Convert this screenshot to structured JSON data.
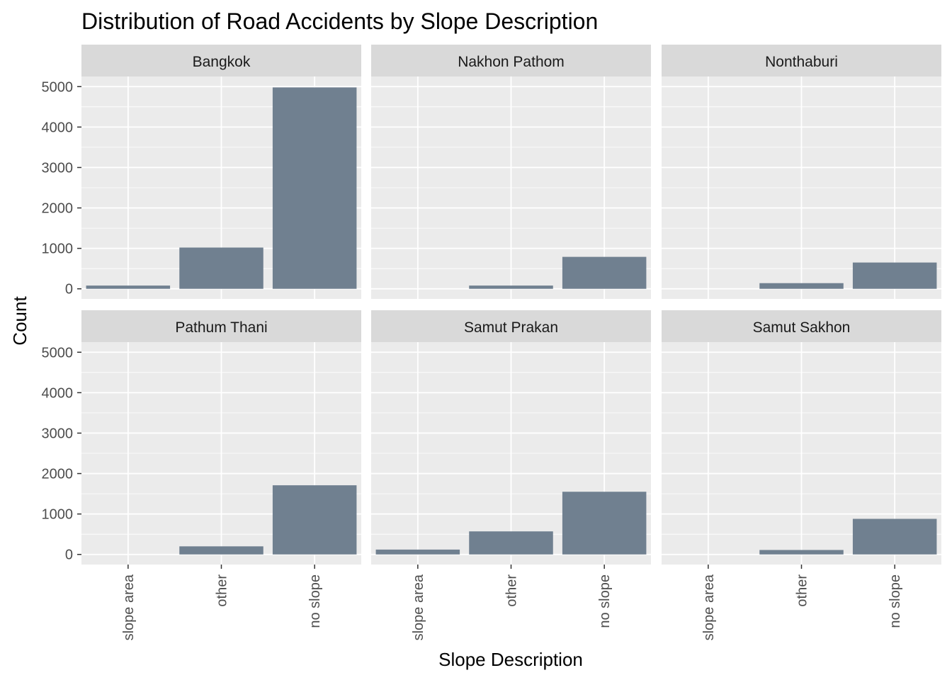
{
  "chart_data": {
    "type": "bar",
    "title": "Distribution of Road Accidents by Slope Description",
    "xlabel": "Slope Description",
    "ylabel": "Count",
    "categories": [
      "slope area",
      "other",
      "no slope"
    ],
    "yticks": [
      0,
      1000,
      2000,
      3000,
      4000,
      5000
    ],
    "ylim": [
      0,
      5250
    ],
    "grid": true,
    "bar_color": "#708090",
    "panel_background": "#ebebeb",
    "strip_background": "#d9d9d9",
    "panels": [
      {
        "name": "Bangkok",
        "values": [
          80,
          1020,
          4980
        ]
      },
      {
        "name": "Nakhon Pathom",
        "values": [
          0,
          80,
          790
        ]
      },
      {
        "name": "Nonthaburi",
        "values": [
          0,
          140,
          650
        ]
      },
      {
        "name": "Pathum Thani",
        "values": [
          0,
          200,
          1710
        ]
      },
      {
        "name": "Samut Prakan",
        "values": [
          120,
          570,
          1550
        ]
      },
      {
        "name": "Samut Sakhon",
        "values": [
          0,
          110,
          880
        ]
      }
    ]
  }
}
